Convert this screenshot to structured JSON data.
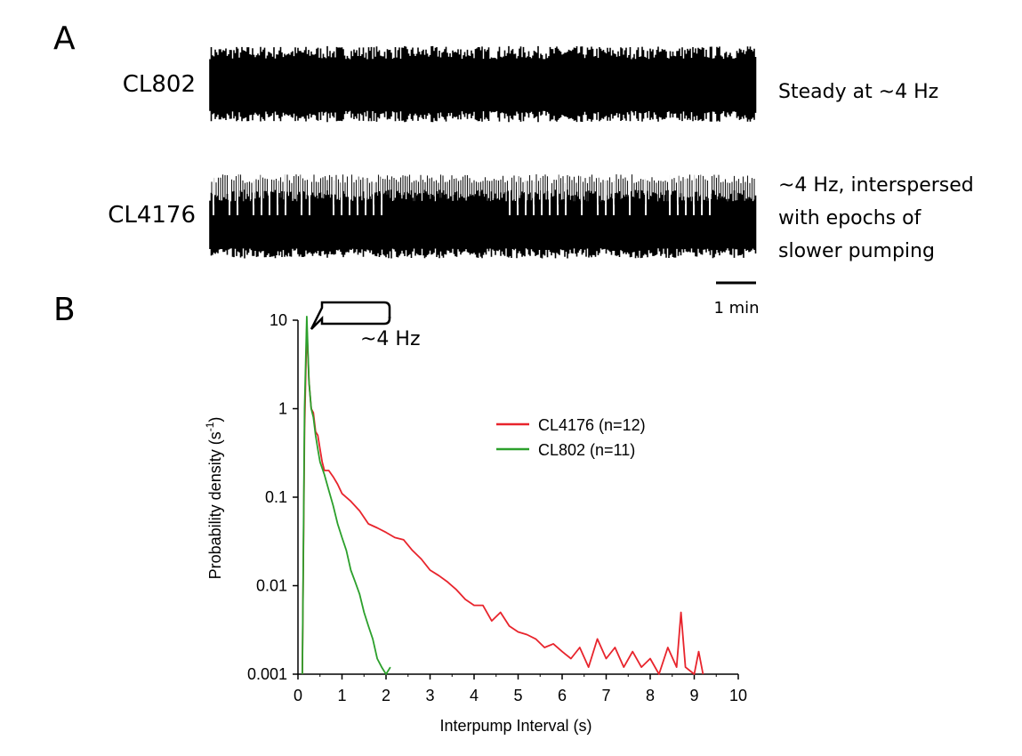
{
  "panel_a": {
    "label": "A",
    "traces": [
      {
        "name": "CL802",
        "description_lines": [
          "Steady at ~4 Hz"
        ]
      },
      {
        "name": "CL4176",
        "description_lines": [
          "~4 Hz, interspersed",
          "with epochs of",
          "slower pumping"
        ]
      }
    ],
    "scalebar_label": "1 min"
  },
  "panel_b": {
    "label": "B",
    "annotation": "~4 Hz"
  },
  "chart_data": {
    "type": "line",
    "xlabel": "Interpump Interval (s)",
    "ylabel": "Probability density (s",
    "ylabel_superscript": "-1",
    "ylabel_suffix": ")",
    "xlim": [
      0,
      10
    ],
    "ylim": [
      0.001,
      10
    ],
    "yscale": "log",
    "xticks": [
      0,
      1,
      2,
      3,
      4,
      5,
      6,
      7,
      8,
      9,
      10
    ],
    "xtick_labels": [
      "0",
      "1",
      "2",
      "3",
      "4",
      "5",
      "6",
      "7",
      "8",
      "9",
      "10"
    ],
    "yticks": [
      0.001,
      0.01,
      0.1,
      1,
      10
    ],
    "ytick_labels": [
      "0.001",
      "0.01",
      "0.1",
      "1",
      "10"
    ],
    "legend_position": "upper-right",
    "series": [
      {
        "name": "CL4176",
        "legend_label": "CL4176  (n=12)",
        "color": "#e8242c",
        "x": [
          0.1,
          0.15,
          0.2,
          0.25,
          0.3,
          0.35,
          0.4,
          0.45,
          0.5,
          0.55,
          0.6,
          0.7,
          0.8,
          0.9,
          1.0,
          1.2,
          1.4,
          1.6,
          1.8,
          2.0,
          2.2,
          2.4,
          2.6,
          2.8,
          3.0,
          3.2,
          3.4,
          3.6,
          3.8,
          4.0,
          4.2,
          4.4,
          4.6,
          4.8,
          5.0,
          5.2,
          5.4,
          5.6,
          5.8,
          6.0,
          6.2,
          6.4,
          6.6,
          6.8,
          7.0,
          7.2,
          7.4,
          7.6,
          7.8,
          8.0,
          8.2,
          8.4,
          8.6,
          8.7,
          8.8,
          9.0,
          9.1,
          9.2
        ],
        "y": [
          0.001,
          0.6,
          8.5,
          2.0,
          1.0,
          0.9,
          0.55,
          0.5,
          0.35,
          0.25,
          0.2,
          0.2,
          0.17,
          0.14,
          0.11,
          0.09,
          0.07,
          0.05,
          0.045,
          0.04,
          0.035,
          0.033,
          0.025,
          0.02,
          0.015,
          0.013,
          0.011,
          0.009,
          0.007,
          0.006,
          0.006,
          0.004,
          0.005,
          0.0035,
          0.003,
          0.0028,
          0.0025,
          0.002,
          0.0022,
          0.0018,
          0.0015,
          0.002,
          0.0012,
          0.0025,
          0.0015,
          0.002,
          0.0012,
          0.0018,
          0.0012,
          0.0015,
          0.001,
          0.002,
          0.0012,
          0.005,
          0.0012,
          0.001,
          0.0018,
          0.001
        ]
      },
      {
        "name": "CL802",
        "legend_label": "CL802  (n=11)",
        "color": "#2ca02c",
        "x": [
          0.1,
          0.15,
          0.2,
          0.25,
          0.3,
          0.35,
          0.4,
          0.45,
          0.5,
          0.6,
          0.7,
          0.8,
          0.9,
          1.0,
          1.1,
          1.2,
          1.3,
          1.4,
          1.5,
          1.6,
          1.7,
          1.8,
          1.9,
          2.0,
          2.1
        ],
        "y": [
          0.001,
          1.0,
          11.0,
          2.0,
          1.0,
          0.8,
          0.5,
          0.35,
          0.25,
          0.18,
          0.12,
          0.08,
          0.05,
          0.035,
          0.025,
          0.015,
          0.011,
          0.008,
          0.005,
          0.0035,
          0.0025,
          0.0015,
          0.0012,
          0.001,
          0.0012
        ]
      }
    ]
  }
}
